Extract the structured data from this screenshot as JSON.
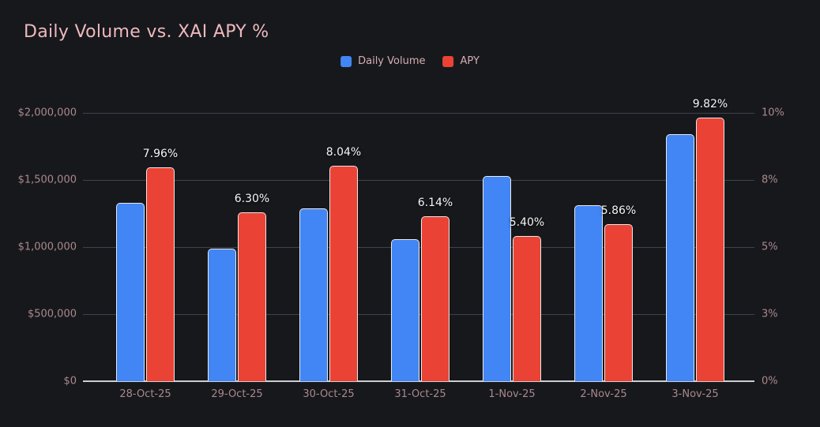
{
  "chart_data": {
    "type": "bar",
    "title": "Daily Volume vs. XAI APY %",
    "categories": [
      "28-Oct-25",
      "29-Oct-25",
      "30-Oct-25",
      "31-Oct-25",
      "1-Nov-25",
      "2-Nov-25",
      "3-Nov-25"
    ],
    "series": [
      {
        "name": "Daily Volume",
        "axis": "left",
        "color": "#4285f4",
        "values": [
          1330000,
          990000,
          1290000,
          1060000,
          1530000,
          1310000,
          1840000
        ]
      },
      {
        "name": "APY",
        "axis": "right",
        "color": "#ea4335",
        "values": [
          7.96,
          6.3,
          8.04,
          6.14,
          5.4,
          5.86,
          9.82
        ],
        "value_labels": [
          "7.96%",
          "6.30%",
          "8.04%",
          "6.14%",
          "5.40%",
          "5.86%",
          "9.82%"
        ]
      }
    ],
    "left_axis": {
      "min": 0,
      "max": 2000000,
      "tick_labels": [
        "$2,000,000",
        "$1,500,000",
        "$1,000,000",
        "$500,000",
        "$0"
      ]
    },
    "right_axis": {
      "min": 0,
      "max": 10,
      "tick_labels": [
        "10%",
        "8%",
        "5%",
        "3%",
        "0%"
      ]
    },
    "legend": {
      "position": "top-center",
      "items": [
        {
          "label": "Daily Volume",
          "color": "#4285f4"
        },
        {
          "label": "APY",
          "color": "#ea4335"
        }
      ]
    },
    "grid": true,
    "colors": {
      "background": "#16181c",
      "title": "#efb9bd",
      "axis_text": "#ab888c",
      "gridline": "#3e424b",
      "zero_line": "#ccced4",
      "data_label": "#f5f5f5",
      "bar_border": "#e9e9e9"
    }
  }
}
